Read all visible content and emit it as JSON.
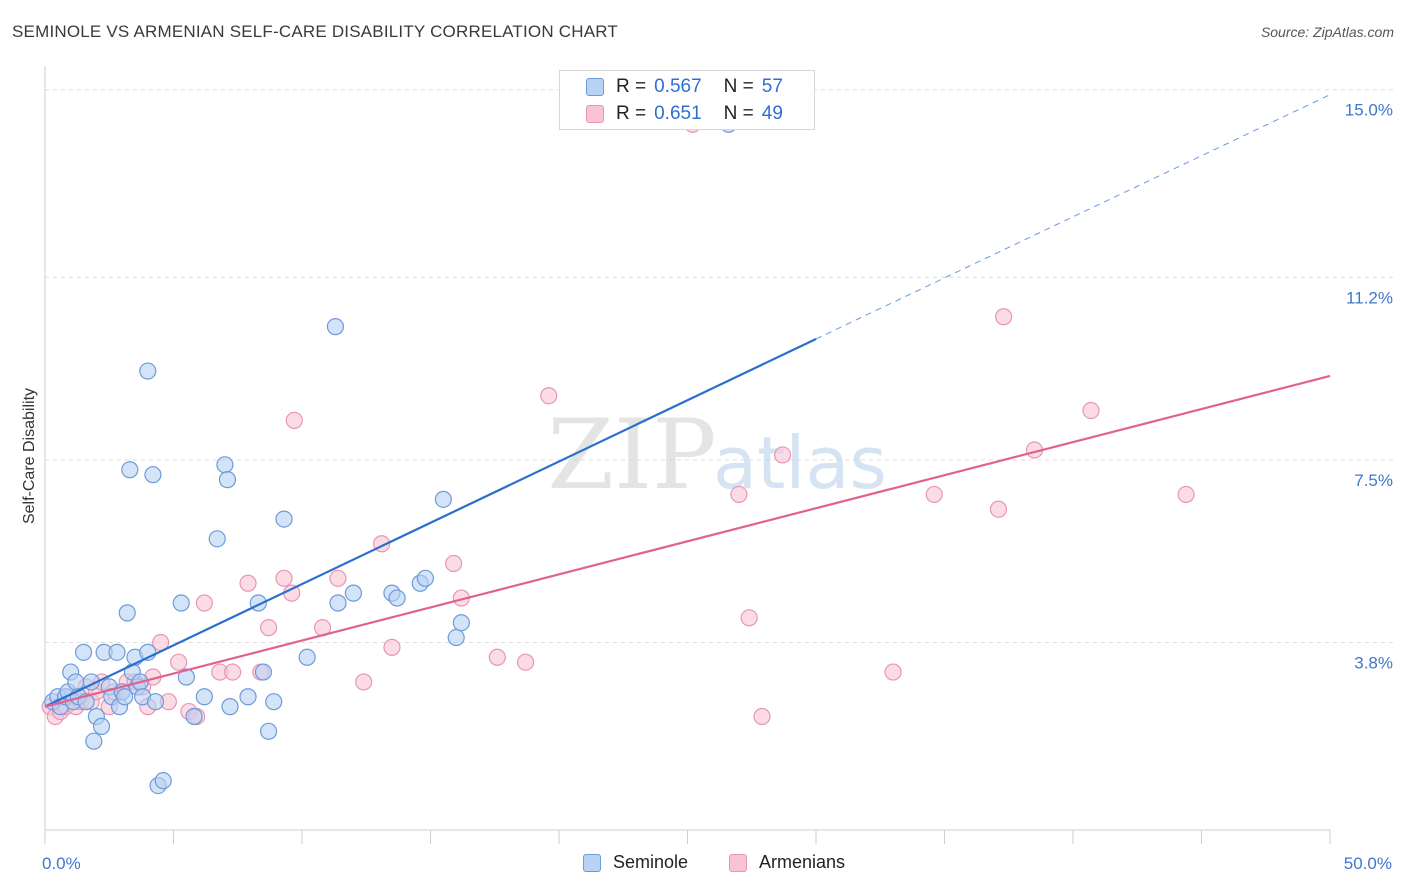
{
  "title": "SEMINOLE VS ARMENIAN SELF-CARE DISABILITY CORRELATION CHART",
  "source": "Source: ZipAtlas.com",
  "watermark": {
    "zip": "ZIP",
    "atlas": "atlas"
  },
  "legend": {
    "r_label": "R =",
    "n_label": "N =",
    "seminole": {
      "r": "0.567",
      "n": "57"
    },
    "armenians": {
      "r": "0.651",
      "n": "49"
    }
  },
  "colors": {
    "seminole_fill": "#b8d2f3",
    "seminole_stroke": "#6f9ad8",
    "seminole_line": "#2a6fd0",
    "armenians_fill": "#f8c4d5",
    "armenians_stroke": "#e797b2",
    "armenians_line": "#e0628f",
    "tick_label": "#3f76d0"
  },
  "chart_data": {
    "type": "scatter",
    "title": "SEMINOLE VS ARMENIAN SELF-CARE DISABILITY CORRELATION CHART",
    "xlabel": "",
    "ylabel": "Self-Care Disability",
    "xlim": [
      0,
      50
    ],
    "ylim": [
      0,
      15.4
    ],
    "x_tick_labels": [
      {
        "value": 0,
        "label": "0.0%"
      },
      {
        "value": 50,
        "label": "50.0%"
      }
    ],
    "y_ticks": [
      {
        "value": 3.8,
        "label": "3.8%"
      },
      {
        "value": 7.5,
        "label": "7.5%"
      },
      {
        "value": 11.2,
        "label": "11.2%"
      },
      {
        "value": 15.0,
        "label": "15.0%"
      }
    ],
    "grid": true,
    "series": [
      {
        "name": "Seminole",
        "points": [
          [
            0.3,
            2.6
          ],
          [
            0.5,
            2.7
          ],
          [
            0.6,
            2.5
          ],
          [
            0.8,
            2.7
          ],
          [
            0.9,
            2.8
          ],
          [
            1.0,
            3.2
          ],
          [
            1.1,
            2.6
          ],
          [
            1.2,
            3.0
          ],
          [
            1.3,
            2.7
          ],
          [
            1.5,
            3.6
          ],
          [
            1.6,
            2.6
          ],
          [
            1.8,
            3.0
          ],
          [
            1.9,
            1.8
          ],
          [
            2.0,
            2.3
          ],
          [
            2.2,
            2.1
          ],
          [
            2.3,
            3.6
          ],
          [
            2.5,
            2.9
          ],
          [
            2.6,
            2.7
          ],
          [
            2.8,
            3.6
          ],
          [
            2.9,
            2.5
          ],
          [
            3.0,
            2.8
          ],
          [
            3.1,
            2.7
          ],
          [
            3.2,
            4.4
          ],
          [
            3.3,
            7.3
          ],
          [
            3.4,
            3.2
          ],
          [
            3.5,
            3.5
          ],
          [
            3.6,
            2.9
          ],
          [
            3.7,
            3.0
          ],
          [
            3.8,
            2.7
          ],
          [
            4.0,
            3.6
          ],
          [
            4.2,
            7.2
          ],
          [
            4.3,
            2.6
          ],
          [
            4.0,
            9.3
          ],
          [
            4.4,
            0.9
          ],
          [
            4.6,
            1.0
          ],
          [
            5.3,
            4.6
          ],
          [
            5.5,
            3.1
          ],
          [
            5.8,
            2.3
          ],
          [
            6.2,
            2.7
          ],
          [
            6.7,
            5.9
          ],
          [
            7.0,
            7.4
          ],
          [
            7.1,
            7.1
          ],
          [
            7.2,
            2.5
          ],
          [
            7.9,
            2.7
          ],
          [
            8.3,
            4.6
          ],
          [
            8.5,
            3.2
          ],
          [
            8.7,
            2.0
          ],
          [
            8.9,
            2.6
          ],
          [
            9.3,
            6.3
          ],
          [
            10.2,
            3.5
          ],
          [
            11.3,
            10.2
          ],
          [
            11.4,
            4.6
          ],
          [
            12.0,
            4.8
          ],
          [
            13.5,
            4.8
          ],
          [
            13.7,
            4.7
          ],
          [
            14.6,
            5.0
          ],
          [
            14.8,
            5.1
          ],
          [
            15.5,
            6.7
          ],
          [
            16.0,
            3.9
          ],
          [
            16.2,
            4.2
          ],
          [
            26.6,
            14.3
          ]
        ],
        "trendline": {
          "x": [
            0,
            30
          ],
          "y": [
            2.5,
            9.95
          ],
          "style": "solid"
        },
        "trendline_extension": {
          "x": [
            30,
            50
          ],
          "y": [
            9.95,
            14.9
          ],
          "style": "dashed"
        }
      },
      {
        "name": "Armenians",
        "points": [
          [
            0.2,
            2.5
          ],
          [
            0.4,
            2.3
          ],
          [
            0.6,
            2.4
          ],
          [
            0.8,
            2.5
          ],
          [
            1.0,
            2.7
          ],
          [
            1.2,
            2.5
          ],
          [
            1.4,
            2.6
          ],
          [
            1.6,
            2.9
          ],
          [
            1.8,
            2.6
          ],
          [
            2.0,
            2.8
          ],
          [
            2.2,
            3.0
          ],
          [
            2.5,
            2.5
          ],
          [
            2.7,
            2.8
          ],
          [
            3.0,
            2.8
          ],
          [
            3.2,
            3.0
          ],
          [
            3.5,
            3.0
          ],
          [
            3.8,
            2.9
          ],
          [
            4.0,
            2.5
          ],
          [
            4.2,
            3.1
          ],
          [
            4.5,
            3.8
          ],
          [
            4.8,
            2.6
          ],
          [
            5.2,
            3.4
          ],
          [
            5.6,
            2.4
          ],
          [
            5.9,
            2.3
          ],
          [
            6.2,
            4.6
          ],
          [
            6.8,
            3.2
          ],
          [
            7.3,
            3.2
          ],
          [
            7.9,
            5.0
          ],
          [
            8.4,
            3.2
          ],
          [
            8.7,
            4.1
          ],
          [
            9.3,
            5.1
          ],
          [
            9.6,
            4.8
          ],
          [
            9.7,
            8.3
          ],
          [
            10.8,
            4.1
          ],
          [
            11.4,
            5.1
          ],
          [
            12.4,
            3.0
          ],
          [
            13.1,
            5.8
          ],
          [
            13.5,
            3.7
          ],
          [
            15.9,
            5.4
          ],
          [
            16.2,
            4.7
          ],
          [
            17.6,
            3.5
          ],
          [
            18.7,
            3.4
          ],
          [
            19.6,
            8.8
          ],
          [
            25.2,
            14.3
          ],
          [
            27.0,
            6.8
          ],
          [
            27.4,
            4.3
          ],
          [
            27.9,
            2.3
          ],
          [
            28.7,
            7.6
          ],
          [
            33.0,
            3.2
          ],
          [
            34.6,
            6.8
          ],
          [
            37.1,
            6.5
          ],
          [
            37.3,
            10.4
          ],
          [
            38.5,
            7.7
          ],
          [
            40.7,
            8.5
          ],
          [
            44.4,
            6.8
          ]
        ],
        "trendline": {
          "x": [
            0,
            50
          ],
          "y": [
            2.5,
            9.2
          ],
          "style": "solid"
        }
      }
    ]
  },
  "bottom_legend": {
    "seminole": "Seminole",
    "armenians": "Armenians"
  }
}
